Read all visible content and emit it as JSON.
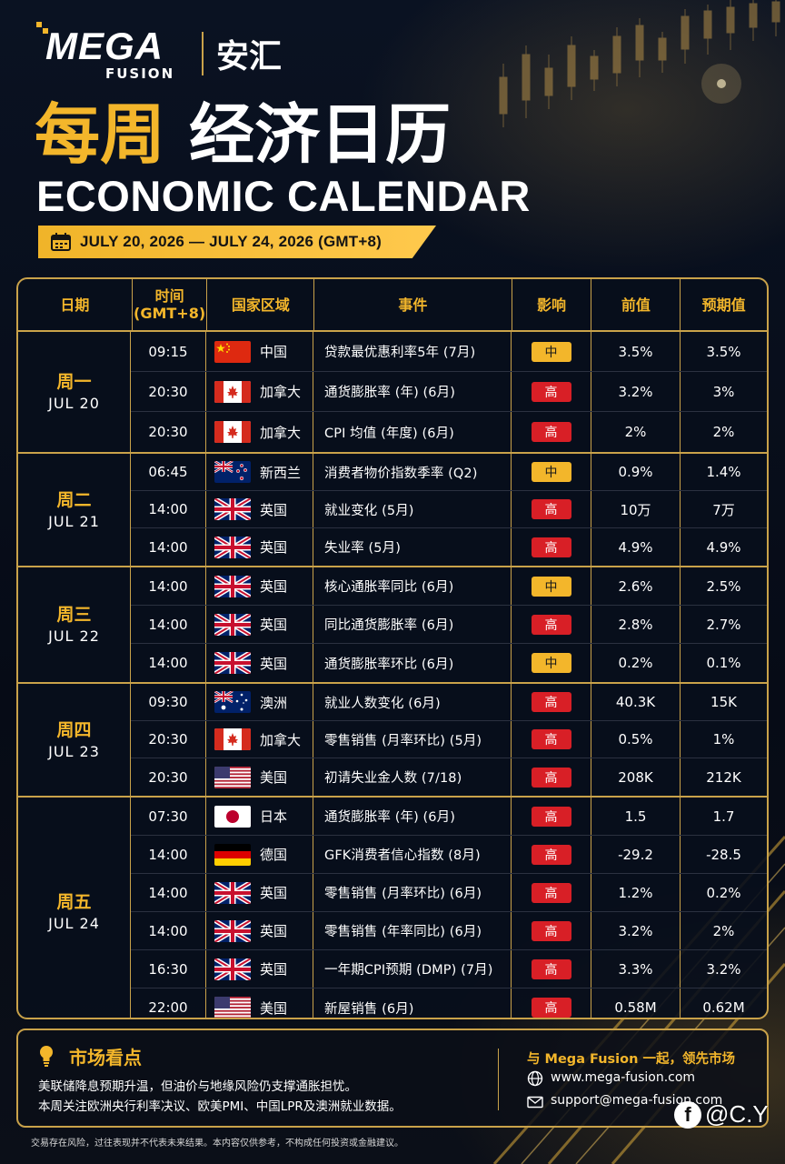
{
  "brand": {
    "logo_main": "MEGA",
    "logo_sub": "FUSION",
    "logo_cn": "安汇"
  },
  "title": {
    "cn_gold": "每周",
    "cn_white": "经济日历",
    "en": "ECONOMIC CALENDAR"
  },
  "date_range": "JULY 20, 2026 — JULY 24, 2026 (GMT+8)",
  "colors": {
    "gold": "#f3b62b",
    "high": "#d81f26",
    "mid": "#f3b62b",
    "background": "#070c18"
  },
  "table": {
    "headers": {
      "date": "日期",
      "time_line1": "时间",
      "time_line2": "(GMT+8)",
      "region": "国家区域",
      "event": "事件",
      "impact": "影响",
      "previous": "前值",
      "forecast": "预期值"
    },
    "days": [
      {
        "day_cn": "周一",
        "day_en": "JUL 20",
        "rows": [
          {
            "time": "09:15",
            "flag": "cn",
            "country": "中国",
            "event": "贷款最优惠利率5年 (7月)",
            "impact": "中",
            "level": "mid",
            "previous": "3.5%",
            "forecast": "3.5%"
          },
          {
            "time": "20:30",
            "flag": "ca",
            "country": "加拿大",
            "event": "通货膨胀率 (年) (6月)",
            "impact": "高",
            "level": "high",
            "previous": "3.2%",
            "forecast": "3%"
          },
          {
            "time": "20:30",
            "flag": "ca",
            "country": "加拿大",
            "event": "CPI 均值 (年度) (6月)",
            "impact": "高",
            "level": "high",
            "previous": "2%",
            "forecast": "2%"
          }
        ]
      },
      {
        "day_cn": "周二",
        "day_en": "JUL 21",
        "rows": [
          {
            "time": "06:45",
            "flag": "nz",
            "country": "新西兰",
            "event": "消费者物价指数季率 (Q2)",
            "impact": "中",
            "level": "mid",
            "previous": "0.9%",
            "forecast": "1.4%"
          },
          {
            "time": "14:00",
            "flag": "uk",
            "country": "英国",
            "event": "就业变化 (5月)",
            "impact": "高",
            "level": "high",
            "previous": "10万",
            "forecast": "7万"
          },
          {
            "time": "14:00",
            "flag": "uk",
            "country": "英国",
            "event": "失业率 (5月)",
            "impact": "高",
            "level": "high",
            "previous": "4.9%",
            "forecast": "4.9%"
          }
        ]
      },
      {
        "day_cn": "周三",
        "day_en": "JUL 22",
        "rows": [
          {
            "time": "14:00",
            "flag": "uk",
            "country": "英国",
            "event": "核心通胀率同比 (6月)",
            "impact": "中",
            "level": "mid",
            "previous": "2.6%",
            "forecast": "2.5%"
          },
          {
            "time": "14:00",
            "flag": "uk",
            "country": "英国",
            "event": "同比通货膨胀率 (6月)",
            "impact": "高",
            "level": "high",
            "previous": "2.8%",
            "forecast": "2.7%"
          },
          {
            "time": "14:00",
            "flag": "uk",
            "country": "英国",
            "event": "通货膨胀率环比 (6月)",
            "impact": "中",
            "level": "mid",
            "previous": "0.2%",
            "forecast": "0.1%"
          }
        ]
      },
      {
        "day_cn": "周四",
        "day_en": "JUL 23",
        "rows": [
          {
            "time": "09:30",
            "flag": "au",
            "country": "澳洲",
            "event": "就业人数变化 (6月)",
            "impact": "高",
            "level": "high",
            "previous": "40.3K",
            "forecast": "15K"
          },
          {
            "time": "20:30",
            "flag": "ca",
            "country": "加拿大",
            "event": "零售销售 (月率环比) (5月)",
            "impact": "高",
            "level": "high",
            "previous": "0.5%",
            "forecast": "1%"
          },
          {
            "time": "20:30",
            "flag": "us",
            "country": "美国",
            "event": "初请失业金人数 (7/18)",
            "impact": "高",
            "level": "high",
            "previous": "208K",
            "forecast": "212K"
          }
        ]
      },
      {
        "day_cn": "周五",
        "day_en": "JUL 24",
        "rows": [
          {
            "time": "07:30",
            "flag": "jp",
            "country": "日本",
            "event": "通货膨胀率 (年) (6月)",
            "impact": "高",
            "level": "high",
            "previous": "1.5",
            "forecast": "1.7"
          },
          {
            "time": "14:00",
            "flag": "de",
            "country": "德国",
            "event": "GFK消费者信心指数 (8月)",
            "impact": "高",
            "level": "high",
            "previous": "-29.2",
            "forecast": "-28.5"
          },
          {
            "time": "14:00",
            "flag": "uk",
            "country": "英国",
            "event": "零售销售 (月率环比) (6月)",
            "impact": "高",
            "level": "high",
            "previous": "1.2%",
            "forecast": "0.2%"
          },
          {
            "time": "14:00",
            "flag": "uk",
            "country": "英国",
            "event": "零售销售 (年率同比) (6月)",
            "impact": "高",
            "level": "high",
            "previous": "3.2%",
            "forecast": "2%"
          },
          {
            "time": "16:30",
            "flag": "uk",
            "country": "英国",
            "event": "一年期CPI预期 (DMP) (7月)",
            "impact": "高",
            "level": "high",
            "previous": "3.3%",
            "forecast": "3.2%"
          },
          {
            "time": "22:00",
            "flag": "us",
            "country": "美国",
            "event": "新屋销售 (6月)",
            "impact": "高",
            "level": "high",
            "previous": "0.58M",
            "forecast": "0.62M"
          }
        ]
      }
    ]
  },
  "insight": {
    "title": "市场看点",
    "line1": "美联储降息预期升温，但油价与地缘风险仍支撑通胀担忧。",
    "line2": "本周关注欧洲央行利率决议、欧美PMI、中国LPR及澳洲就业数据。"
  },
  "contact": {
    "tagline": "与 Mega Fusion 一起，领先市场",
    "website": "www.mega-fusion.com",
    "email": "support@mega-fusion.com"
  },
  "disclaimer": "交易存在风险，过往表现并不代表未来结果。本内容仅供参考，不构成任何投资或金融建议。",
  "watermark": {
    "icon": "facebook-icon",
    "text": "@C.Y"
  }
}
